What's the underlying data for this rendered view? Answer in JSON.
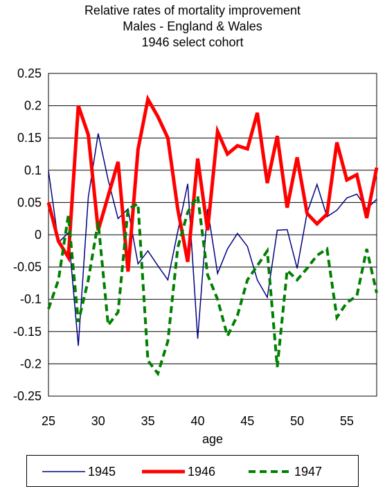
{
  "chart_data": {
    "type": "line",
    "title": [
      "Relative rates of mortality improvement",
      "Males - England & Wales",
      "1946 select cohort"
    ],
    "xlabel": "age",
    "ylabel": "",
    "xlim": [
      25,
      58
    ],
    "ylim": [
      -0.25,
      0.25
    ],
    "x_ticks": [
      25,
      30,
      35,
      40,
      45,
      50,
      55
    ],
    "y_ticks": [
      0.25,
      0.2,
      0.15,
      0.1,
      0.05,
      0,
      -0.05,
      -0.1,
      -0.15,
      -0.2,
      -0.25
    ],
    "y_tick_labels": [
      "0.25",
      "0.2",
      "0.15",
      "0.1",
      "0.05",
      "0",
      "-0.05",
      "-0.1",
      "-0.15",
      "-0.2",
      "-0.25"
    ],
    "grid": "horizontal",
    "legend_position": "bottom",
    "x": [
      25,
      26,
      27,
      28,
      29,
      30,
      31,
      32,
      33,
      34,
      35,
      36,
      37,
      38,
      39,
      40,
      41,
      42,
      43,
      44,
      45,
      46,
      47,
      48,
      49,
      50,
      51,
      52,
      53,
      54,
      55,
      56,
      57,
      58
    ],
    "series": [
      {
        "name": "1945",
        "color": "#000080",
        "style": "solid",
        "width": 1.5,
        "values": [
          0.099,
          -0.012,
          0.003,
          -0.172,
          0.058,
          0.157,
          0.085,
          0.025,
          0.04,
          -0.045,
          -0.025,
          -0.048,
          -0.07,
          0.005,
          0.079,
          -0.161,
          0.04,
          -0.06,
          -0.022,
          0.002,
          -0.018,
          -0.07,
          -0.097,
          0.007,
          0.008,
          -0.052,
          0.034,
          0.078,
          0.028,
          0.038,
          0.057,
          0.063,
          0.04,
          0.055
        ]
      },
      {
        "name": "1946",
        "color": "#ff0000",
        "style": "solid",
        "width": 5,
        "values": [
          0.05,
          -0.01,
          -0.035,
          0.2,
          0.155,
          0.007,
          0.06,
          0.113,
          -0.057,
          0.132,
          0.21,
          0.183,
          0.15,
          0.04,
          -0.042,
          0.118,
          0.007,
          0.16,
          0.125,
          0.138,
          0.133,
          0.189,
          0.08,
          0.153,
          0.042,
          0.12,
          0.033,
          0.017,
          0.032,
          0.143,
          0.085,
          0.093,
          0.026,
          0.104
        ]
      },
      {
        "name": "1947",
        "color": "#008000",
        "style": "dashed",
        "width": 4,
        "values": [
          -0.115,
          -0.07,
          0.03,
          -0.135,
          -0.07,
          0.02,
          -0.14,
          -0.12,
          0.04,
          0.048,
          -0.195,
          -0.215,
          -0.165,
          -0.02,
          0.035,
          0.06,
          -0.062,
          -0.1,
          -0.157,
          -0.125,
          -0.07,
          -0.048,
          -0.025,
          -0.205,
          -0.055,
          -0.07,
          -0.052,
          -0.032,
          -0.022,
          -0.128,
          -0.105,
          -0.095,
          -0.022,
          -0.09
        ]
      }
    ]
  }
}
